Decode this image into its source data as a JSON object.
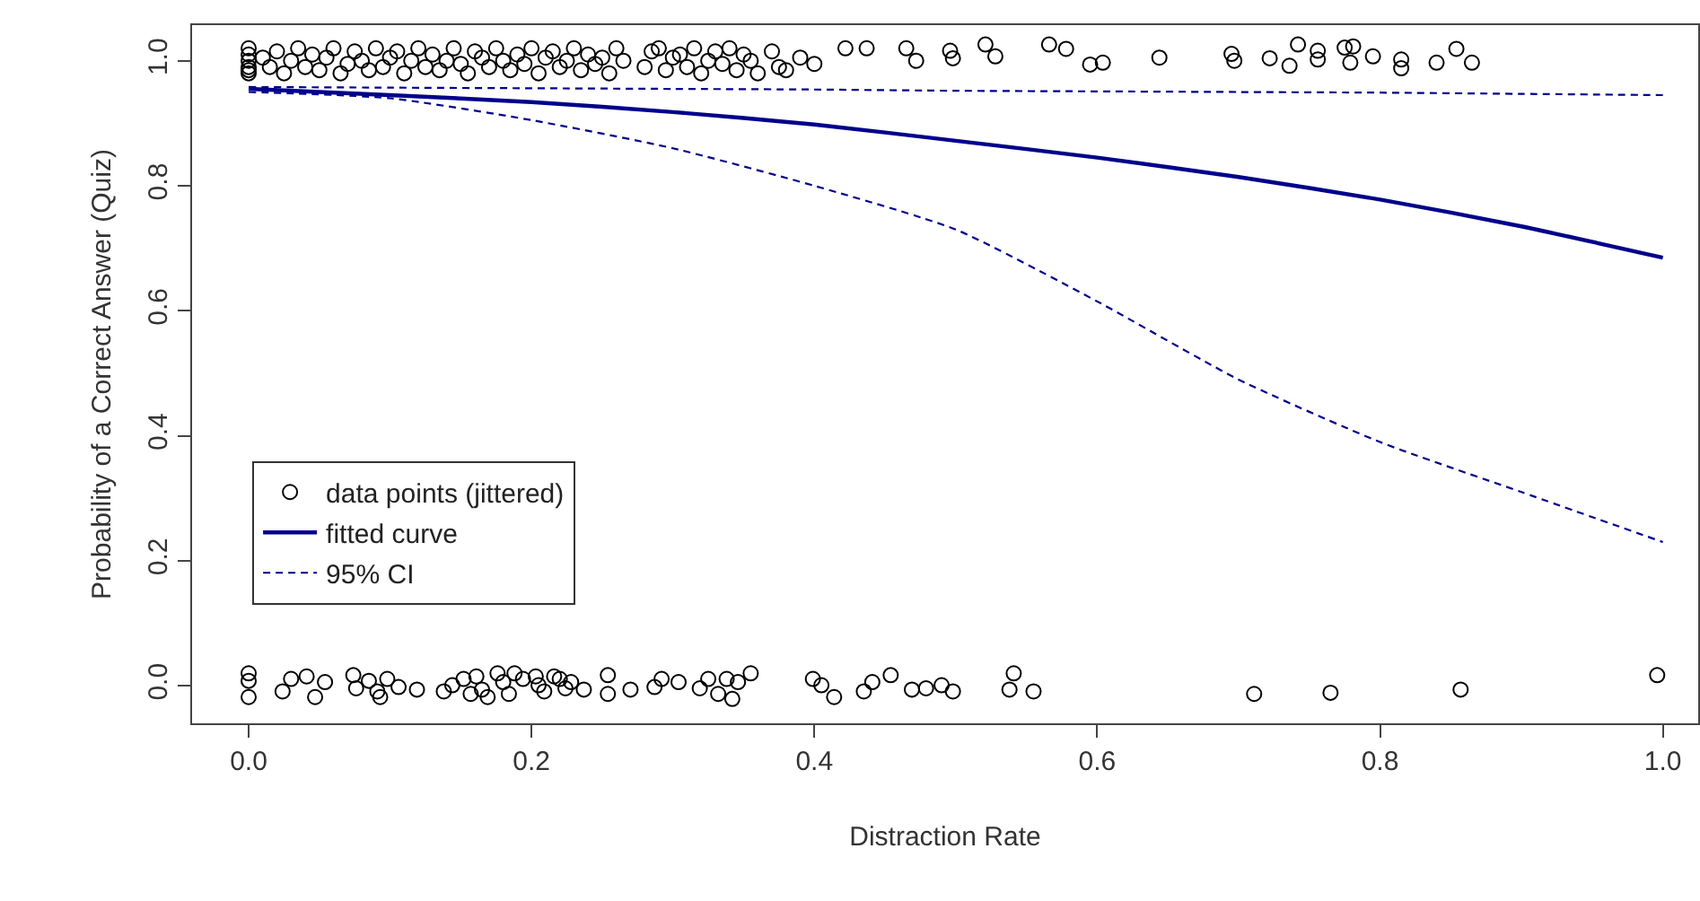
{
  "chart_data": {
    "type": "scatter",
    "xlabel": "Distraction Rate",
    "ylabel": "Probability of a Correct Answer (Quiz)",
    "xlim": [
      -0.04,
      1.025
    ],
    "ylim": [
      -0.06,
      1.057
    ],
    "xticks": [
      {
        "value": 0,
        "label": "0.0"
      },
      {
        "value": 0.2,
        "label": "0.2"
      },
      {
        "value": 0.4,
        "label": "0.4"
      },
      {
        "value": 0.6,
        "label": "0.6"
      },
      {
        "value": 0.8,
        "label": "0.8"
      },
      {
        "value": 1,
        "label": "1.0"
      }
    ],
    "yticks": [
      {
        "value": 0,
        "label": "0.0"
      },
      {
        "value": 0.2,
        "label": "0.2"
      },
      {
        "value": 0.4,
        "label": "0.4"
      },
      {
        "value": 0.6,
        "label": "0.6"
      },
      {
        "value": 0.8,
        "label": "0.8"
      },
      {
        "value": 1,
        "label": "1.0"
      }
    ],
    "grid": false,
    "legend": "bottom left",
    "series": [
      {
        "name": "data points (jittered)",
        "marker": "circle",
        "color": "#000000",
        "x": [
          0,
          0,
          0,
          0,
          0,
          0,
          0.01,
          0.015,
          0.02,
          0.025,
          0.03,
          0.035,
          0.04,
          0.045,
          0.05,
          0.055,
          0.06,
          0.065,
          0.07,
          0.075,
          0.08,
          0.085,
          0.09,
          0.095,
          0.1,
          0.105,
          0.11,
          0.115,
          0.12,
          0.125,
          0.13,
          0.135,
          0.14,
          0.145,
          0.15,
          0.155,
          0.16,
          0.165,
          0.17,
          0.175,
          0.18,
          0.185,
          0.19,
          0.195,
          0.2,
          0.205,
          0.21,
          0.215,
          0.22,
          0.225,
          0.23,
          0.235,
          0.24,
          0.245,
          0.25,
          0.255,
          0.26,
          0.265,
          0.28,
          0.285,
          0.29,
          0.295,
          0.3,
          0.305,
          0.31,
          0.315,
          0.32,
          0.325,
          0.33,
          0.335,
          0.34,
          0.345,
          0.35,
          0.355,
          0.36,
          0.37,
          0.375,
          0.38,
          0.39,
          0.4,
          0.422,
          0.437,
          0.465,
          0.472,
          0.498,
          0.496,
          0.521,
          0.528,
          0.566,
          0.578,
          0.595,
          0.604,
          0.644,
          0.695,
          0.697,
          0.722,
          0.736,
          0.742,
          0.756,
          0.756,
          0.775,
          0.779,
          0.781,
          0.795,
          0.815,
          0.815,
          0.84,
          0.854,
          0.865,
          0,
          0,
          0,
          0.024,
          0.03,
          0.041,
          0.047,
          0.054,
          0.074,
          0.076,
          0.085,
          0.091,
          0.093,
          0.098,
          0.106,
          0.119,
          0.138,
          0.144,
          0.152,
          0.157,
          0.161,
          0.165,
          0.169,
          0.176,
          0.18,
          0.184,
          0.188,
          0.194,
          0.203,
          0.205,
          0.209,
          0.216,
          0.22,
          0.224,
          0.228,
          0.237,
          0.254,
          0.254,
          0.27,
          0.287,
          0.292,
          0.304,
          0.319,
          0.325,
          0.332,
          0.338,
          0.342,
          0.346,
          0.355,
          0.399,
          0.405,
          0.414,
          0.435,
          0.441,
          0.454,
          0.469,
          0.479,
          0.49,
          0.498,
          0.541,
          0.538,
          0.555,
          0.711,
          0.765,
          0.857,
          0.996
        ],
        "values": [
          0.98,
          0.99,
          1.0,
          1.01,
          1.02,
          0.985,
          1.005,
          0.99,
          1.015,
          0.98,
          1.0,
          1.02,
          0.99,
          1.01,
          0.985,
          1.005,
          1.02,
          0.98,
          0.995,
          1.015,
          1.0,
          0.985,
          1.02,
          0.99,
          1.005,
          1.015,
          0.98,
          1.0,
          1.02,
          0.99,
          1.01,
          0.985,
          1.0,
          1.02,
          0.995,
          0.98,
          1.015,
          1.005,
          0.99,
          1.02,
          1.0,
          0.985,
          1.01,
          0.995,
          1.02,
          0.98,
          1.005,
          1.015,
          0.99,
          1.0,
          1.02,
          0.985,
          1.01,
          0.995,
          1.005,
          0.98,
          1.02,
          1.0,
          0.99,
          1.015,
          1.02,
          0.985,
          1.005,
          1.01,
          0.99,
          1.02,
          0.98,
          1.0,
          1.015,
          0.995,
          1.02,
          0.985,
          1.01,
          1.0,
          0.98,
          1.015,
          0.99,
          0.985,
          1.005,
          0.995,
          1.02,
          1.02,
          1.02,
          1.0,
          1.004,
          1.016,
          1.026,
          1.007,
          1.026,
          1.019,
          0.994,
          0.997,
          1.005,
          1.011,
          1.0,
          1.004,
          0.992,
          1.026,
          1.016,
          1.002,
          1.021,
          0.997,
          1.023,
          1.007,
          1.002,
          0.988,
          0.997,
          1.019,
          0.997,
          0.02,
          0.008,
          -0.018,
          -0.009,
          0.011,
          0.015,
          -0.018,
          0.006,
          0.017,
          -0.004,
          0.008,
          -0.009,
          -0.018,
          0.011,
          -0.002,
          -0.006,
          -0.009,
          0.001,
          0.011,
          -0.013,
          0.015,
          -0.006,
          -0.018,
          0.02,
          0.006,
          -0.013,
          0.02,
          0.011,
          0.015,
          0.001,
          -0.009,
          0.015,
          0.011,
          -0.004,
          0.006,
          -0.006,
          0.017,
          -0.013,
          -0.006,
          -0.002,
          0.011,
          0.006,
          -0.004,
          0.011,
          -0.013,
          0.011,
          -0.021,
          0.006,
          0.02,
          0.011,
          0.001,
          -0.018,
          -0.009,
          0.006,
          0.017,
          -0.006,
          -0.004,
          0.001,
          -0.009,
          0.02,
          -0.006,
          -0.009,
          -0.013,
          -0.011,
          -0.006,
          0.017
        ]
      },
      {
        "name": "fitted curve",
        "type": "line",
        "marker": "none",
        "line_style": "solid",
        "color": "#00008b",
        "x": [
          0,
          0.1,
          0.2,
          0.3,
          0.4,
          0.5,
          0.6,
          0.7,
          0.8,
          0.9,
          1
        ],
        "values": [
          0.955,
          0.945,
          0.934,
          0.918,
          0.898,
          0.872,
          0.845,
          0.814,
          0.778,
          0.735,
          0.685
        ]
      },
      {
        "name": "95% CI",
        "type": "line",
        "marker": "none",
        "line_style": "dashed",
        "color": "#00008b",
        "x": [
          0,
          0.1,
          0.2,
          0.3,
          0.4,
          0.5,
          0.6,
          0.7,
          0.8,
          0.9,
          1
        ],
        "values": [
          0.958,
          0.957,
          0.956,
          0.955,
          0.954,
          0.952,
          0.951,
          0.95,
          0.949,
          0.947,
          0.945
        ]
      },
      {
        "type": "line",
        "marker": "none",
        "line_style": "dashed",
        "color": "#00008b",
        "x": [
          0,
          0.1,
          0.2,
          0.3,
          0.4,
          0.5,
          0.6,
          0.7,
          0.8,
          0.9,
          1
        ],
        "values": [
          0.95,
          0.94,
          0.905,
          0.86,
          0.8,
          0.73,
          0.615,
          0.49,
          0.39,
          0.31,
          0.23
        ]
      }
    ]
  }
}
